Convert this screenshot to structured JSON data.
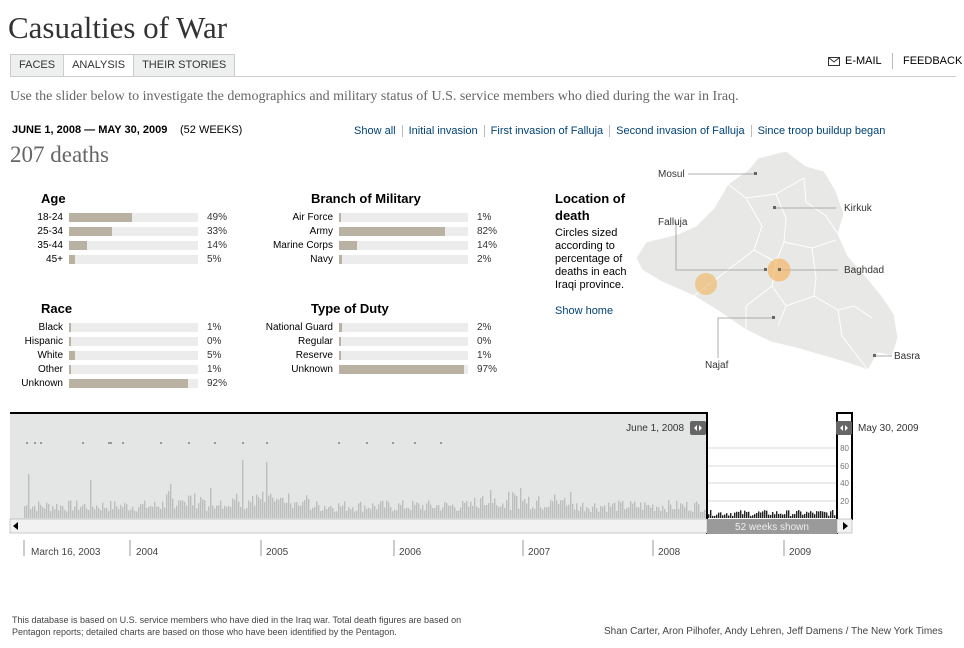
{
  "app": {
    "title": "Casualties of War"
  },
  "tabs": [
    {
      "label": "FACES",
      "active": false
    },
    {
      "label": "ANALYSIS",
      "active": true
    },
    {
      "label": "THEIR STORIES",
      "active": false
    }
  ],
  "toolbar": {
    "email_label": "E-MAIL",
    "feedback_label": "FEEDBACK",
    "email_icon": "envelope-icon"
  },
  "intro": "Use the slider below to investigate the demographics and military status of U.S. service members who died during the war in Iraq.",
  "range": {
    "dates": "JUNE 1, 2008 — MAY 30, 2009",
    "weeks": "(52 WEEKS)"
  },
  "presets": [
    "Show all",
    "Initial invasion",
    "First invasion of Falluja",
    "Second invasion of Falluja",
    "Since troop buildup began"
  ],
  "total": "207 deaths",
  "panels": {
    "age": {
      "title": "Age",
      "rows": [
        {
          "label": "18-24",
          "value": 49,
          "pct": "49%"
        },
        {
          "label": "25-34",
          "value": 33,
          "pct": "33%"
        },
        {
          "label": "35-44",
          "value": 14,
          "pct": "14%"
        },
        {
          "label": "45+",
          "value": 5,
          "pct": "5%"
        }
      ]
    },
    "branch": {
      "title": "Branch of Military",
      "rows": [
        {
          "label": "Air Force",
          "value": 1,
          "pct": "1%"
        },
        {
          "label": "Army",
          "value": 82,
          "pct": "82%"
        },
        {
          "label": "Marine Corps",
          "value": 14,
          "pct": "14%"
        },
        {
          "label": "Navy",
          "value": 2,
          "pct": "2%"
        }
      ]
    },
    "race": {
      "title": "Race",
      "rows": [
        {
          "label": "Black",
          "value": 1,
          "pct": "1%"
        },
        {
          "label": "Hispanic",
          "value": 0,
          "pct": "0%"
        },
        {
          "label": "White",
          "value": 5,
          "pct": "5%"
        },
        {
          "label": "Other",
          "value": 1,
          "pct": "1%"
        },
        {
          "label": "Unknown",
          "value": 92,
          "pct": "92%"
        }
      ]
    },
    "duty": {
      "title": "Type of Duty",
      "rows": [
        {
          "label": "National Guard",
          "value": 2,
          "pct": "2%"
        },
        {
          "label": "Regular",
          "value": 0,
          "pct": "0%"
        },
        {
          "label": "Reserve",
          "value": 1,
          "pct": "1%"
        },
        {
          "label": "Unknown",
          "value": 97,
          "pct": "97%"
        }
      ]
    }
  },
  "location": {
    "title": "Location of death",
    "note": "Circles sized according to percentage of deaths in each Iraqi province.",
    "show_home": "Show home",
    "cities": [
      "Mosul",
      "Kirkuk",
      "Falluja",
      "Baghdad",
      "Najaf",
      "Basra"
    ]
  },
  "timeline": {
    "start_label": "June 1, 2008",
    "end_label": "May 30, 2009",
    "window_label": "52 weeks shown",
    "y_ticks": [
      "80",
      "60",
      "40",
      "20"
    ],
    "axis_labels": [
      "March 16, 2003",
      "2004",
      "2005",
      "2006",
      "2007",
      "2008",
      "2009"
    ]
  },
  "footnote": "This database is based on U.S. service members who have died in the Iraq war. Total death figures are based on Pentagon reports; detailed charts are based on those who have been identified by the Pentagon.",
  "credits": "Shan Carter, Aron Pilhofer, Andy Lehren, Jeff Damens / The New York Times",
  "colors": {
    "bar": "#b9b2a3",
    "track": "#ececec",
    "link": "#004276",
    "circle": "#f2b25a"
  }
}
